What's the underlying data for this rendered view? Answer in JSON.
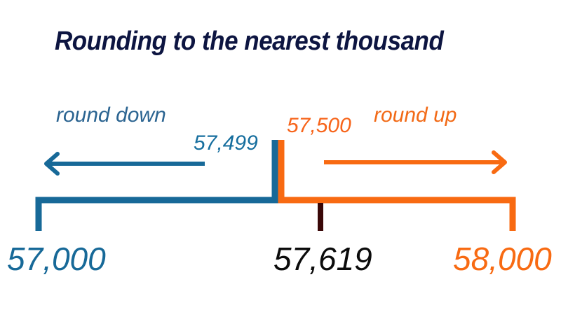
{
  "title": "Rounding to the nearest thousand",
  "labels": {
    "round_down": "round down",
    "round_up": "round up",
    "midpoint_low": "57,499",
    "midpoint_high": "57,500"
  },
  "number_line": {
    "lower": "57,000",
    "value": "57,619",
    "upper": "58,000"
  },
  "colors": {
    "title": "#0d1541",
    "round_down": "#176998",
    "round_up": "#f86a12",
    "value_tick": "#3a0808"
  }
}
